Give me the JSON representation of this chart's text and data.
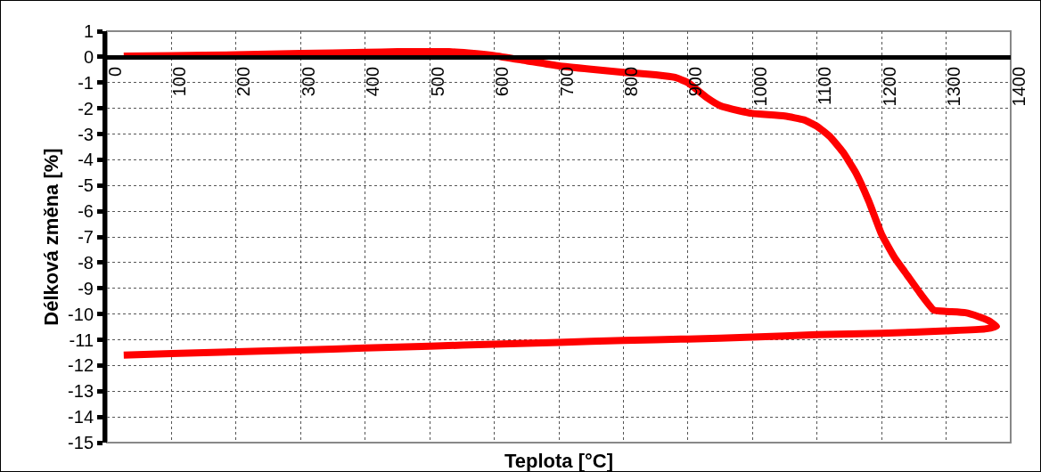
{
  "chart_data": {
    "type": "line",
    "xlabel": "Teplota [°C]",
    "ylabel": "Délková změna [%]",
    "xlim": [
      0,
      1400
    ],
    "xticks": [
      0,
      100,
      200,
      300,
      400,
      500,
      600,
      700,
      800,
      900,
      1000,
      1100,
      1200,
      1300,
      1400
    ],
    "ylim": [
      -15,
      1
    ],
    "yticks": [
      1,
      0,
      -1,
      -2,
      -3,
      -4,
      -5,
      -6,
      -7,
      -8,
      -9,
      -10,
      -11,
      -12,
      -13,
      -14,
      -15
    ],
    "grid": true,
    "marker": "none",
    "line_style": "solid",
    "series": [
      {
        "color": "#ff0000",
        "x": [
          26,
          100,
          200,
          300,
          400,
          450,
          500,
          530,
          560,
          600,
          650,
          700,
          750,
          800,
          850,
          880,
          900,
          915,
          930,
          950,
          980,
          1000,
          1050,
          1080,
          1100,
          1120,
          1140,
          1160,
          1180,
          1200,
          1220,
          1240,
          1260,
          1281,
          1300,
          1330,
          1350,
          1365,
          1378,
          1360,
          1300,
          1200,
          1100,
          1000,
          900,
          800,
          700,
          600,
          500,
          400,
          300,
          200,
          100,
          26
        ],
        "values": [
          0.03,
          0.05,
          0.08,
          0.13,
          0.18,
          0.2,
          0.2,
          0.2,
          0.15,
          0.05,
          -0.15,
          -0.35,
          -0.48,
          -0.6,
          -0.7,
          -0.8,
          -1.0,
          -1.3,
          -1.6,
          -1.9,
          -2.1,
          -2.2,
          -2.3,
          -2.45,
          -2.7,
          -3.1,
          -3.7,
          -4.5,
          -5.6,
          -6.9,
          -7.8,
          -8.5,
          -9.2,
          -9.85,
          -9.9,
          -9.95,
          -10.1,
          -10.25,
          -10.48,
          -10.58,
          -10.65,
          -10.75,
          -10.8,
          -10.9,
          -10.97,
          -11.03,
          -11.1,
          -11.17,
          -11.25,
          -11.32,
          -11.4,
          -11.47,
          -11.54,
          -11.6
        ]
      }
    ]
  }
}
